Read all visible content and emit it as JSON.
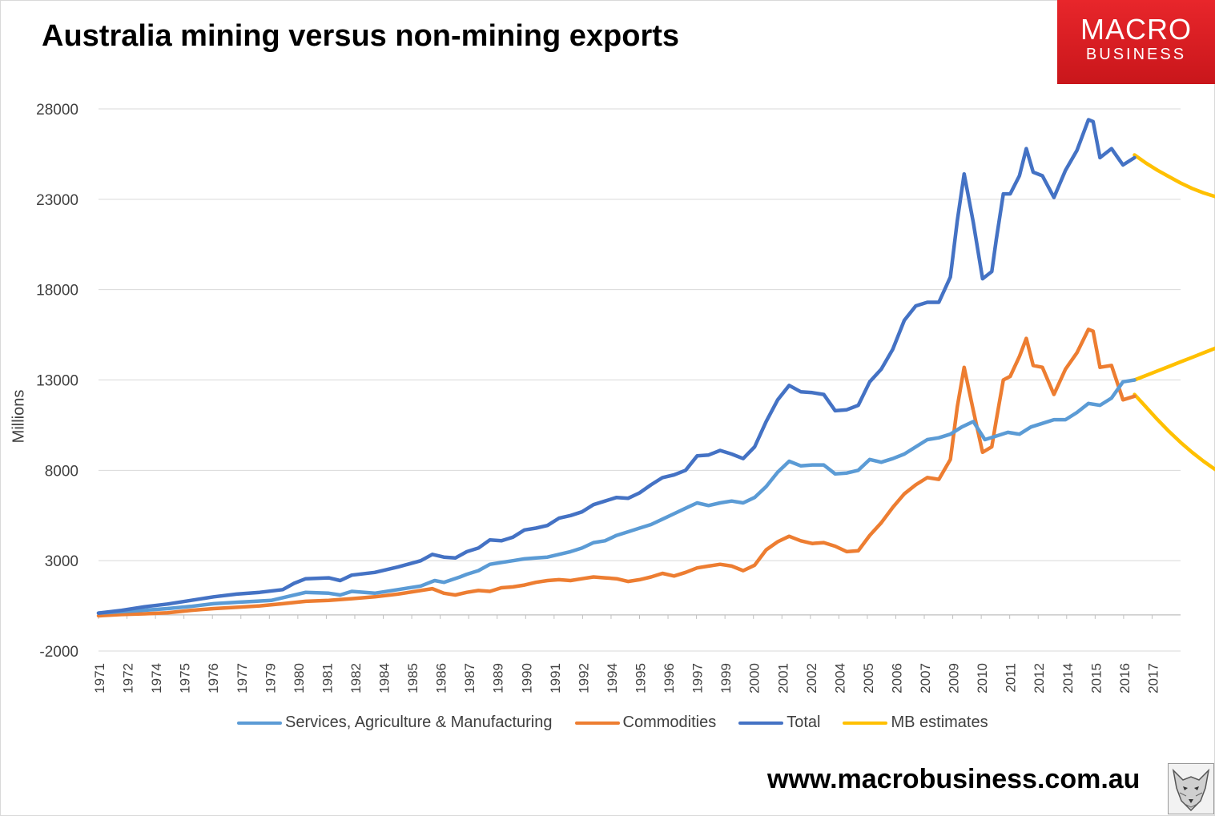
{
  "title": "Australia mining versus non-mining exports",
  "logo": {
    "line1": "MACRO",
    "line2": "BUSINESS"
  },
  "footer_url": "www.macrobusiness.com.au",
  "colors": {
    "services": "#5b9bd5",
    "commodities": "#ed7d31",
    "total": "#4472c4",
    "estimates": "#ffc000",
    "axis": "#bfbfbf",
    "grid": "#d9d9d9"
  },
  "legend": [
    {
      "key": "services",
      "label": "Services, Agriculture & Manufacturing"
    },
    {
      "key": "commodities",
      "label": "Commodities"
    },
    {
      "key": "total",
      "label": "Total"
    },
    {
      "key": "estimates",
      "label": "MB estimates"
    }
  ],
  "chart_data": {
    "type": "line",
    "title": "Australia mining versus non-mining exports",
    "xlabel": "",
    "ylabel": "Millions",
    "ylim": [
      -2000,
      28000
    ],
    "yticks": [
      28000,
      23000,
      18000,
      13000,
      8000,
      3000,
      -2000
    ],
    "xlim": [
      1971.0,
      2018.0
    ],
    "xtick_labels": [
      "1971",
      "1972",
      "1974",
      "1975",
      "1976",
      "1977",
      "1979",
      "1980",
      "1981",
      "1982",
      "1984",
      "1985",
      "1986",
      "1987",
      "1989",
      "1990",
      "1991",
      "1992",
      "1994",
      "1995",
      "1996",
      "1997",
      "1999",
      "2000",
      "2001",
      "2002",
      "2004",
      "2005",
      "2006",
      "2007",
      "2009",
      "2010",
      "2011",
      "2012",
      "2014",
      "2015",
      "2016",
      "2017"
    ],
    "gridlines": "horizontal",
    "legend_position": "bottom",
    "series": [
      {
        "name": "Services, Agriculture & Manufacturing",
        "key": "services",
        "points": [
          [
            1971.0,
            100
          ],
          [
            1972.0,
            180
          ],
          [
            1973.0,
            260
          ],
          [
            1974.0,
            350
          ],
          [
            1975.0,
            470
          ],
          [
            1976.0,
            620
          ],
          [
            1977.0,
            700
          ],
          [
            1977.8,
            750
          ],
          [
            1978.5,
            800
          ],
          [
            1979.0,
            950
          ],
          [
            1980.0,
            1250
          ],
          [
            1981.0,
            1200
          ],
          [
            1981.5,
            1100
          ],
          [
            1982.0,
            1300
          ],
          [
            1983.0,
            1200
          ],
          [
            1984.0,
            1400
          ],
          [
            1985.0,
            1600
          ],
          [
            1985.6,
            1900
          ],
          [
            1986.0,
            1800
          ],
          [
            1986.7,
            2100
          ],
          [
            1987.0,
            2250
          ],
          [
            1987.5,
            2450
          ],
          [
            1988.0,
            2800
          ],
          [
            1988.5,
            2900
          ],
          [
            1989.0,
            3000
          ],
          [
            1989.5,
            3100
          ],
          [
            1990.0,
            3150
          ],
          [
            1990.5,
            3200
          ],
          [
            1991.0,
            3350
          ],
          [
            1991.5,
            3500
          ],
          [
            1992.0,
            3700
          ],
          [
            1992.5,
            4000
          ],
          [
            1993.0,
            4100
          ],
          [
            1993.5,
            4400
          ],
          [
            1994.0,
            4600
          ],
          [
            1994.5,
            4800
          ],
          [
            1995.0,
            5000
          ],
          [
            1995.5,
            5300
          ],
          [
            1996.0,
            5600
          ],
          [
            1996.5,
            5900
          ],
          [
            1997.0,
            6200
          ],
          [
            1997.5,
            6050
          ],
          [
            1998.0,
            6200
          ],
          [
            1998.5,
            6300
          ],
          [
            1999.0,
            6200
          ],
          [
            1999.5,
            6500
          ],
          [
            2000.0,
            7100
          ],
          [
            2000.5,
            7900
          ],
          [
            2001.0,
            8500
          ],
          [
            2001.5,
            8250
          ],
          [
            2002.0,
            8300
          ],
          [
            2002.5,
            8300
          ],
          [
            2003.0,
            7800
          ],
          [
            2003.5,
            7850
          ],
          [
            2004.0,
            8000
          ],
          [
            2004.5,
            8600
          ],
          [
            2005.0,
            8450
          ],
          [
            2005.5,
            8650
          ],
          [
            2006.0,
            8900
          ],
          [
            2006.5,
            9300
          ],
          [
            2007.0,
            9700
          ],
          [
            2007.5,
            9800
          ],
          [
            2008.0,
            10000
          ],
          [
            2008.5,
            10400
          ],
          [
            2009.0,
            10700
          ],
          [
            2009.5,
            9700
          ],
          [
            2010.0,
            9900
          ],
          [
            2010.5,
            10100
          ],
          [
            2011.0,
            10000
          ],
          [
            2011.5,
            10400
          ],
          [
            2012.0,
            10600
          ],
          [
            2012.5,
            10800
          ],
          [
            2013.0,
            10800
          ],
          [
            2013.5,
            11200
          ],
          [
            2014.0,
            11700
          ],
          [
            2014.5,
            11600
          ],
          [
            2015.0,
            12000
          ],
          [
            2015.5,
            12900
          ],
          [
            2016.0,
            13000
          ]
        ]
      },
      {
        "name": "Commodities",
        "key": "commodities",
        "points": [
          [
            1971.0,
            -50
          ],
          [
            1972.0,
            20
          ],
          [
            1973.0,
            60
          ],
          [
            1974.0,
            120
          ],
          [
            1975.0,
            250
          ],
          [
            1976.0,
            350
          ],
          [
            1977.0,
            420
          ],
          [
            1978.0,
            500
          ],
          [
            1979.0,
            620
          ],
          [
            1980.0,
            750
          ],
          [
            1981.0,
            800
          ],
          [
            1982.0,
            900
          ],
          [
            1983.0,
            1000
          ],
          [
            1984.0,
            1150
          ],
          [
            1985.0,
            1350
          ],
          [
            1985.5,
            1450
          ],
          [
            1986.0,
            1200
          ],
          [
            1986.5,
            1100
          ],
          [
            1987.0,
            1250
          ],
          [
            1987.5,
            1350
          ],
          [
            1988.0,
            1300
          ],
          [
            1988.5,
            1500
          ],
          [
            1989.0,
            1550
          ],
          [
            1989.5,
            1650
          ],
          [
            1990.0,
            1800
          ],
          [
            1990.5,
            1900
          ],
          [
            1991.0,
            1950
          ],
          [
            1991.5,
            1900
          ],
          [
            1992.0,
            2000
          ],
          [
            1992.5,
            2100
          ],
          [
            1993.0,
            2050
          ],
          [
            1993.5,
            2000
          ],
          [
            1994.0,
            1850
          ],
          [
            1994.5,
            1950
          ],
          [
            1995.0,
            2100
          ],
          [
            1995.5,
            2300
          ],
          [
            1996.0,
            2150
          ],
          [
            1996.5,
            2350
          ],
          [
            1997.0,
            2600
          ],
          [
            1997.5,
            2700
          ],
          [
            1998.0,
            2800
          ],
          [
            1998.5,
            2700
          ],
          [
            1999.0,
            2450
          ],
          [
            1999.5,
            2750
          ],
          [
            2000.0,
            3600
          ],
          [
            2000.5,
            4050
          ],
          [
            2001.0,
            4350
          ],
          [
            2001.5,
            4100
          ],
          [
            2002.0,
            3950
          ],
          [
            2002.5,
            4000
          ],
          [
            2003.0,
            3800
          ],
          [
            2003.5,
            3500
          ],
          [
            2004.0,
            3550
          ],
          [
            2004.5,
            4400
          ],
          [
            2005.0,
            5100
          ],
          [
            2005.5,
            5950
          ],
          [
            2006.0,
            6700
          ],
          [
            2006.5,
            7200
          ],
          [
            2007.0,
            7600
          ],
          [
            2007.5,
            7500
          ],
          [
            2008.0,
            8600
          ],
          [
            2008.3,
            11500
          ],
          [
            2008.6,
            13700
          ],
          [
            2009.0,
            11300
          ],
          [
            2009.4,
            9000
          ],
          [
            2009.8,
            9300
          ],
          [
            2010.0,
            10800
          ],
          [
            2010.3,
            13000
          ],
          [
            2010.6,
            13200
          ],
          [
            2011.0,
            14300
          ],
          [
            2011.3,
            15300
          ],
          [
            2011.6,
            13800
          ],
          [
            2012.0,
            13700
          ],
          [
            2012.5,
            12200
          ],
          [
            2013.0,
            13600
          ],
          [
            2013.5,
            14500
          ],
          [
            2014.0,
            15800
          ],
          [
            2014.2,
            15700
          ],
          [
            2014.5,
            13700
          ],
          [
            2015.0,
            13800
          ],
          [
            2015.5,
            11900
          ],
          [
            2016.0,
            12100
          ]
        ]
      },
      {
        "name": "Total",
        "key": "total",
        "points": [
          [
            1971.0,
            100
          ],
          [
            1972.0,
            250
          ],
          [
            1973.0,
            450
          ],
          [
            1974.0,
            600
          ],
          [
            1975.0,
            800
          ],
          [
            1976.0,
            1000
          ],
          [
            1977.0,
            1150
          ],
          [
            1978.0,
            1250
          ],
          [
            1979.0,
            1400
          ],
          [
            1979.5,
            1750
          ],
          [
            1980.0,
            2000
          ],
          [
            1981.0,
            2050
          ],
          [
            1981.5,
            1900
          ],
          [
            1982.0,
            2200
          ],
          [
            1983.0,
            2350
          ],
          [
            1984.0,
            2650
          ],
          [
            1985.0,
            3000
          ],
          [
            1985.5,
            3350
          ],
          [
            1986.0,
            3200
          ],
          [
            1986.5,
            3150
          ],
          [
            1987.0,
            3500
          ],
          [
            1987.5,
            3700
          ],
          [
            1988.0,
            4150
          ],
          [
            1988.5,
            4100
          ],
          [
            1989.0,
            4300
          ],
          [
            1989.5,
            4700
          ],
          [
            1990.0,
            4800
          ],
          [
            1990.5,
            4950
          ],
          [
            1991.0,
            5350
          ],
          [
            1991.5,
            5500
          ],
          [
            1992.0,
            5700
          ],
          [
            1992.5,
            6100
          ],
          [
            1993.0,
            6300
          ],
          [
            1993.5,
            6500
          ],
          [
            1994.0,
            6450
          ],
          [
            1994.5,
            6750
          ],
          [
            1995.0,
            7200
          ],
          [
            1995.5,
            7600
          ],
          [
            1996.0,
            7750
          ],
          [
            1996.5,
            8000
          ],
          [
            1997.0,
            8800
          ],
          [
            1997.5,
            8850
          ],
          [
            1998.0,
            9100
          ],
          [
            1998.5,
            8900
          ],
          [
            1999.0,
            8650
          ],
          [
            1999.5,
            9300
          ],
          [
            2000.0,
            10700
          ],
          [
            2000.5,
            11900
          ],
          [
            2001.0,
            12700
          ],
          [
            2001.5,
            12350
          ],
          [
            2002.0,
            12300
          ],
          [
            2002.5,
            12200
          ],
          [
            2003.0,
            11300
          ],
          [
            2003.5,
            11350
          ],
          [
            2004.0,
            11600
          ],
          [
            2004.5,
            12900
          ],
          [
            2005.0,
            13600
          ],
          [
            2005.5,
            14700
          ],
          [
            2006.0,
            16300
          ],
          [
            2006.5,
            17100
          ],
          [
            2007.0,
            17300
          ],
          [
            2007.5,
            17300
          ],
          [
            2008.0,
            18700
          ],
          [
            2008.3,
            21800
          ],
          [
            2008.6,
            24400
          ],
          [
            2009.0,
            21700
          ],
          [
            2009.4,
            18600
          ],
          [
            2009.8,
            19000
          ],
          [
            2010.0,
            20800
          ],
          [
            2010.3,
            23300
          ],
          [
            2010.6,
            23300
          ],
          [
            2011.0,
            24300
          ],
          [
            2011.3,
            25800
          ],
          [
            2011.6,
            24500
          ],
          [
            2012.0,
            24300
          ],
          [
            2012.5,
            23100
          ],
          [
            2013.0,
            24600
          ],
          [
            2013.5,
            25700
          ],
          [
            2014.0,
            27400
          ],
          [
            2014.2,
            27300
          ],
          [
            2014.5,
            25300
          ],
          [
            2015.0,
            25800
          ],
          [
            2015.5,
            24900
          ],
          [
            2016.0,
            25300
          ]
        ]
      },
      {
        "name": "MB estimates",
        "key": "estimates",
        "segments": [
          [
            [
              2016.0,
              25450
            ],
            [
              2016.5,
              25000
            ],
            [
              2017.0,
              24600
            ],
            [
              2017.5,
              24250
            ],
            [
              2018.0,
              23900
            ],
            [
              2018.5,
              23600
            ],
            [
              2019.0,
              23350
            ],
            [
              2019.5,
              23150
            ],
            [
              2020.0,
              23000
            ]
          ],
          [
            [
              2016.0,
              13000
            ],
            [
              2016.5,
              13250
            ],
            [
              2017.0,
              13500
            ],
            [
              2017.5,
              13750
            ],
            [
              2018.0,
              14000
            ],
            [
              2018.5,
              14250
            ],
            [
              2019.0,
              14500
            ],
            [
              2019.5,
              14750
            ],
            [
              2020.0,
              15000
            ]
          ],
          [
            [
              2016.0,
              12200
            ],
            [
              2016.5,
              11500
            ],
            [
              2017.0,
              10800
            ],
            [
              2017.5,
              10150
            ],
            [
              2018.0,
              9550
            ],
            [
              2018.5,
              9000
            ],
            [
              2019.0,
              8500
            ],
            [
              2019.5,
              8050
            ],
            [
              2020.0,
              7950
            ]
          ]
        ]
      }
    ]
  }
}
